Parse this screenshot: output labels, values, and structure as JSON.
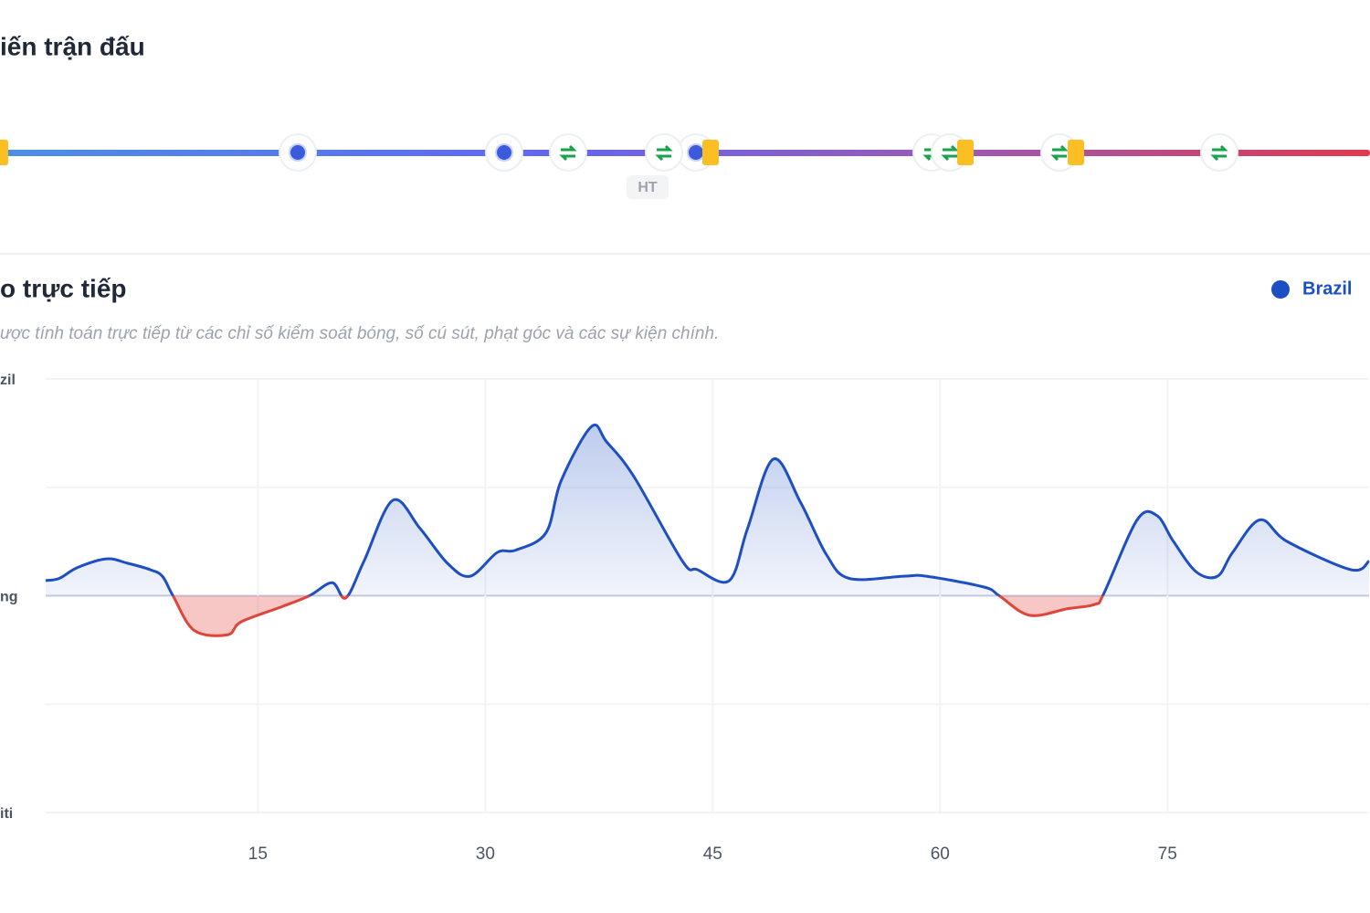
{
  "timeline": {
    "title": "iến trận đấu",
    "half_time_label": "HT"
  },
  "chart_data": {
    "type": "line",
    "title": "o trực tiếp",
    "subtitle": "ược tính toán trực tiếp từ các chỉ số kiểm soát bóng, số cú sút, phạt góc và các sự kiện chính.",
    "x": [
      1,
      1.9,
      3.1,
      5,
      6.4,
      7.9,
      8.7,
      9.4,
      10.8,
      13,
      13.9,
      16.6,
      18.4,
      19.9,
      20.8,
      22,
      23.9,
      25.7,
      27.5,
      29,
      30.8,
      32,
      34,
      35,
      37,
      38,
      39.8,
      43,
      44,
      46.1,
      47.3,
      49,
      50.8,
      52.5,
      54,
      57.6,
      59.1,
      62.9,
      63.9,
      65.9,
      68.4,
      70.2,
      70.8,
      73,
      74.3,
      75.4,
      76.9,
      78.3,
      79.3,
      81.1,
      82.9,
      87.1,
      88.3
    ],
    "series": [
      {
        "name": "Brazil",
        "color": "#1e4fc2",
        "negative_color": "#e0453a",
        "values": [
          7,
          8,
          13,
          17,
          15,
          12,
          9,
          0,
          -16,
          -18,
          -12,
          -5,
          0,
          6,
          -1,
          16,
          44,
          31,
          15,
          9,
          20,
          21,
          29,
          53,
          78,
          71,
          55,
          16,
          12,
          7,
          31,
          63,
          43,
          19,
          8,
          9,
          9,
          4,
          0,
          -9,
          -6,
          -4,
          1,
          35,
          37,
          25,
          11,
          9,
          20,
          35,
          25,
          12,
          16
        ]
      }
    ],
    "xlim": [
      1,
      88.3
    ],
    "xticks": [
      15,
      30,
      45,
      60,
      75
    ],
    "ylim": [
      -100,
      100
    ],
    "yticks": [
      {
        "value": -100,
        "label": "iti"
      },
      {
        "value": 0,
        "label": "ng"
      },
      {
        "value": 100,
        "label": "zil"
      }
    ],
    "minor_yticks": [
      -50,
      50
    ],
    "grid": true
  }
}
